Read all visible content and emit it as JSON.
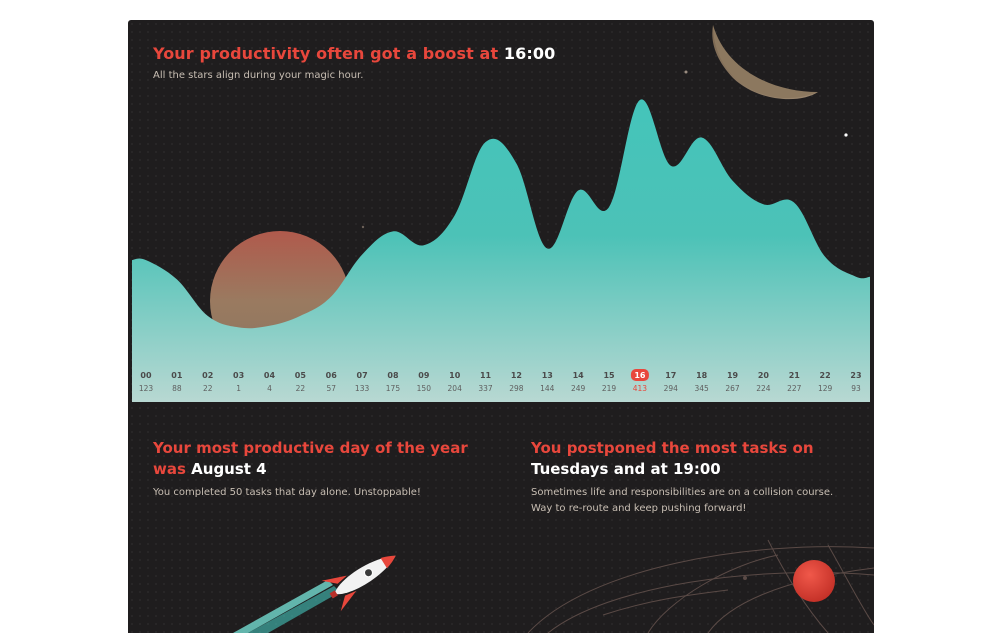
{
  "hero": {
    "headline_prefix": "Your productivity often got a boost at",
    "headline_hour": "16:00",
    "subline": "All the stars align during your magic hour."
  },
  "chart_data": {
    "type": "area",
    "x": [
      "00",
      "01",
      "02",
      "03",
      "04",
      "05",
      "06",
      "07",
      "08",
      "09",
      "10",
      "11",
      "12",
      "13",
      "14",
      "15",
      "16",
      "17",
      "18",
      "19",
      "20",
      "21",
      "22",
      "23"
    ],
    "values": [
      123,
      88,
      22,
      1,
      4,
      22,
      57,
      133,
      175,
      150,
      204,
      337,
      298,
      144,
      249,
      219,
      413,
      294,
      345,
      267,
      224,
      227,
      129,
      93
    ],
    "highlight_index": 16,
    "colors": {
      "area_top": "#44c4ba",
      "area_bottom": "#b4d6cf",
      "highlight": "#e8473c",
      "label": "#4b4b4b"
    }
  },
  "best_day": {
    "title_part1": "Your most productive day of the year",
    "title_part2": "was",
    "date": "August 4",
    "description": "You completed 50 tasks that day alone. Unstoppable!"
  },
  "postponed": {
    "title_part1": "You postponed the most tasks on",
    "title_part2": "Tuesdays and at 19:00",
    "description_line1": "Sometimes life and responsibilities are on a collision course.",
    "description_line2": "Way to re-route and keep pushing forward!"
  },
  "decor": {
    "moon-icon": "moon",
    "planet-icon": "planet",
    "rocket-icon": "rocket",
    "orbit-icon": "orbit-planet"
  }
}
